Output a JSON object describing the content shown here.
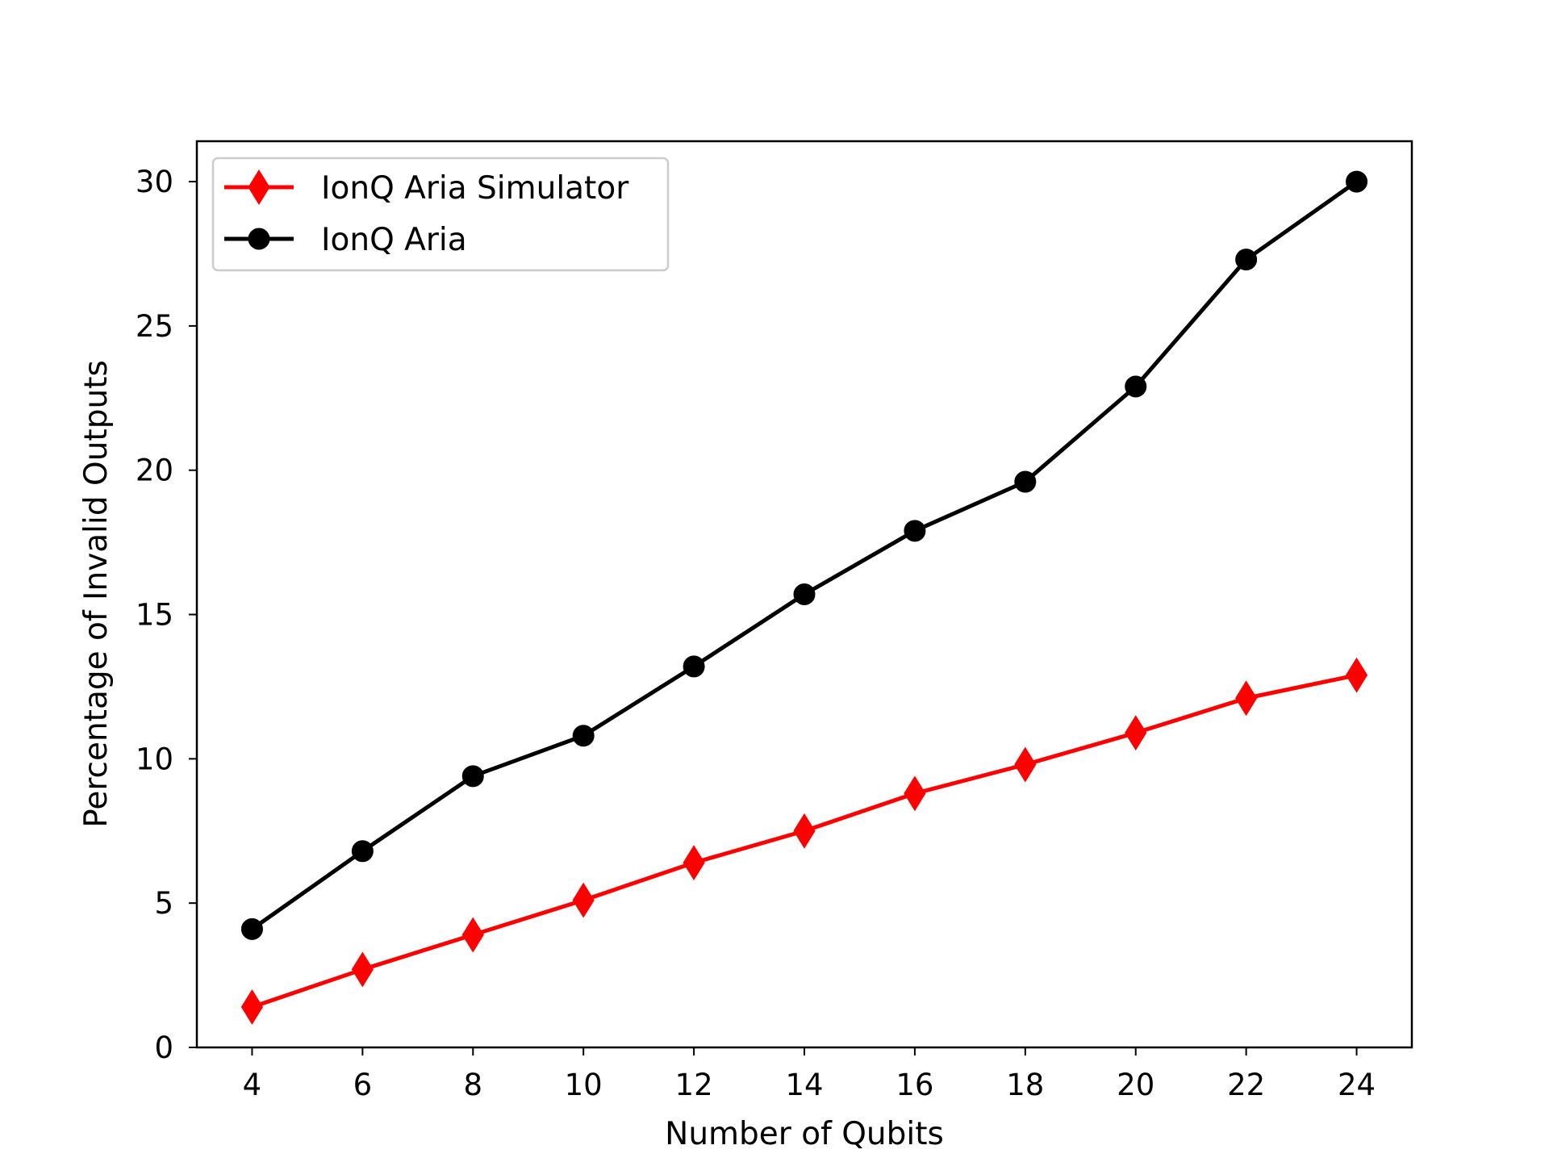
{
  "chart_data": {
    "type": "line",
    "xlabel": "Number of Qubits",
    "ylabel": "Percentage of Invalid Outputs",
    "xlim": [
      3,
      25
    ],
    "ylim": [
      0,
      31.4
    ],
    "x_ticks": [
      4,
      6,
      8,
      10,
      12,
      14,
      16,
      18,
      20,
      22,
      24
    ],
    "y_ticks": [
      0,
      5,
      10,
      15,
      20,
      25,
      30
    ],
    "legend_position": "upper-left",
    "grid": false,
    "series": [
      {
        "name": "IonQ Aria Simulator",
        "color": "#ff0000",
        "marker": "diamond",
        "x": [
          4,
          6,
          8,
          10,
          12,
          14,
          16,
          18,
          20,
          22,
          24
        ],
        "y": [
          1.4,
          2.7,
          3.9,
          5.1,
          6.4,
          7.5,
          8.8,
          9.8,
          10.9,
          12.1,
          12.9
        ]
      },
      {
        "name": "IonQ Aria",
        "color": "#000000",
        "marker": "circle",
        "x": [
          4,
          6,
          8,
          10,
          12,
          14,
          16,
          18,
          20,
          22,
          24
        ],
        "y": [
          4.1,
          6.8,
          9.4,
          10.8,
          13.2,
          15.7,
          17.9,
          19.6,
          22.9,
          27.3,
          30.0
        ]
      }
    ]
  }
}
